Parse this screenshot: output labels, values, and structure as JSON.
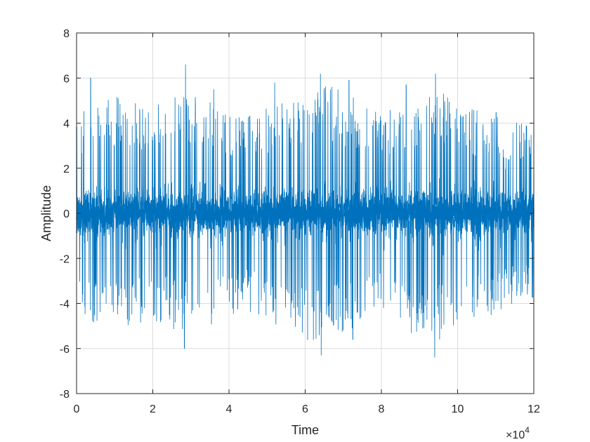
{
  "chart_data": {
    "type": "line",
    "title": "",
    "xlabel": "Time",
    "ylabel": "Amplitude",
    "xlim": [
      0,
      120000
    ],
    "ylim": [
      -8,
      8
    ],
    "x_tick_values": [
      0,
      20000,
      40000,
      60000,
      80000,
      100000,
      120000
    ],
    "x_tick_labels": [
      "0",
      "2",
      "4",
      "6",
      "8",
      "10",
      "12"
    ],
    "x_exponent_label": "×10",
    "x_exponent_power": "4",
    "y_tick_values": [
      -8,
      -6,
      -4,
      -2,
      0,
      2,
      4,
      6,
      8
    ],
    "y_tick_labels": [
      "-8",
      "-6",
      "-4",
      "-2",
      "0",
      "2",
      "4",
      "6",
      "8"
    ],
    "grid": true,
    "series": [
      {
        "color": "#0072BD",
        "description_points": {
          "x": [
            3700,
            28600,
            36000,
            52000,
            64000,
            71500,
            86500,
            94200,
            118000
          ],
          "y": [
            6.0,
            6.6,
            5.5,
            5.8,
            6.2,
            5.9,
            5.7,
            6.2,
            3.9
          ]
        },
        "negative_peaks": {
          "x": [
            28300,
            64200,
            72500,
            94000
          ],
          "y": [
            -6.0,
            -6.3,
            -5.6,
            -6.4
          ]
        },
        "envelope": {
          "x": [
            0,
            10000,
            20000,
            28000,
            36000,
            44000,
            52000,
            60000,
            64000,
            72000,
            80000,
            86000,
            94000,
            102000,
            110000,
            120000
          ],
          "y": [
            4.4,
            5.4,
            4.8,
            5.3,
            5.0,
            4.2,
            5.1,
            5.6,
            5.8,
            5.3,
            4.4,
            5.2,
            5.8,
            4.7,
            4.5,
            3.8
          ]
        }
      }
    ]
  }
}
